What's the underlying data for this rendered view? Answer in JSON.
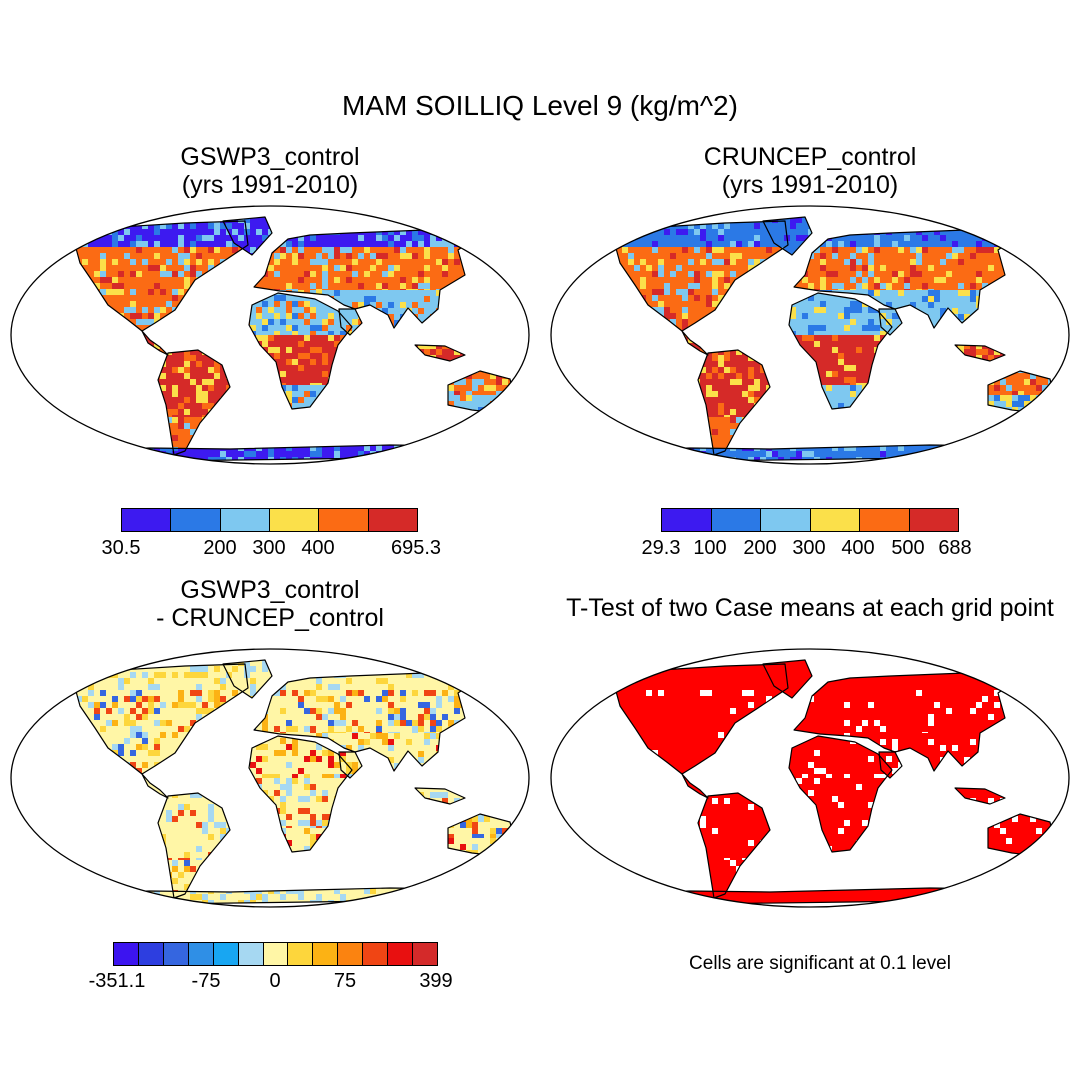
{
  "title": "MAM SOILLIQ Level 9 (kg/m^2)",
  "panels": [
    {
      "id": "gswp3",
      "title_line1": "GSWP3_control",
      "title_line2": "(yrs 1991-2010)"
    },
    {
      "id": "cruncep",
      "title_line1": "CRUNCEP_control",
      "title_line2": "(yrs 1991-2010)"
    },
    {
      "id": "diff",
      "title_line1": "GSWP3_control",
      "title_line2": "- CRUNCEP_control"
    },
    {
      "id": "ttest",
      "title_line1": "T-Test of two Case means at each grid point",
      "title_line2": ""
    }
  ],
  "colorbars": {
    "gswp3": {
      "colors": [
        "#3d1af0",
        "#2b79e6",
        "#7ec8f0",
        "#fbe04a",
        "#fb6b14",
        "#d52a28"
      ],
      "labels": [
        "30.5",
        "200",
        "300",
        "400",
        "695.3"
      ]
    },
    "cruncep": {
      "colors": [
        "#3d1af0",
        "#2b79e6",
        "#7ec8f0",
        "#fbe04a",
        "#fb6b14",
        "#d52a28"
      ],
      "labels": [
        "29.3",
        "100",
        "200",
        "300",
        "400",
        "500",
        "688"
      ]
    },
    "diff": {
      "colors": [
        "#3c14f0",
        "#2d3ee0",
        "#3566e0",
        "#2f8fe6",
        "#18a6f2",
        "#a6d8f2",
        "#fff6a6",
        "#fdd63c",
        "#fcb214",
        "#fb8310",
        "#f04514",
        "#e81010",
        "#d42a2a"
      ],
      "labels": [
        "-351.1",
        "-75",
        "0",
        "75",
        "399"
      ]
    }
  },
  "note": "Cells are significant at 0.1 level",
  "colors": {
    "significant": "#ff0000",
    "coast": "#000000"
  }
}
